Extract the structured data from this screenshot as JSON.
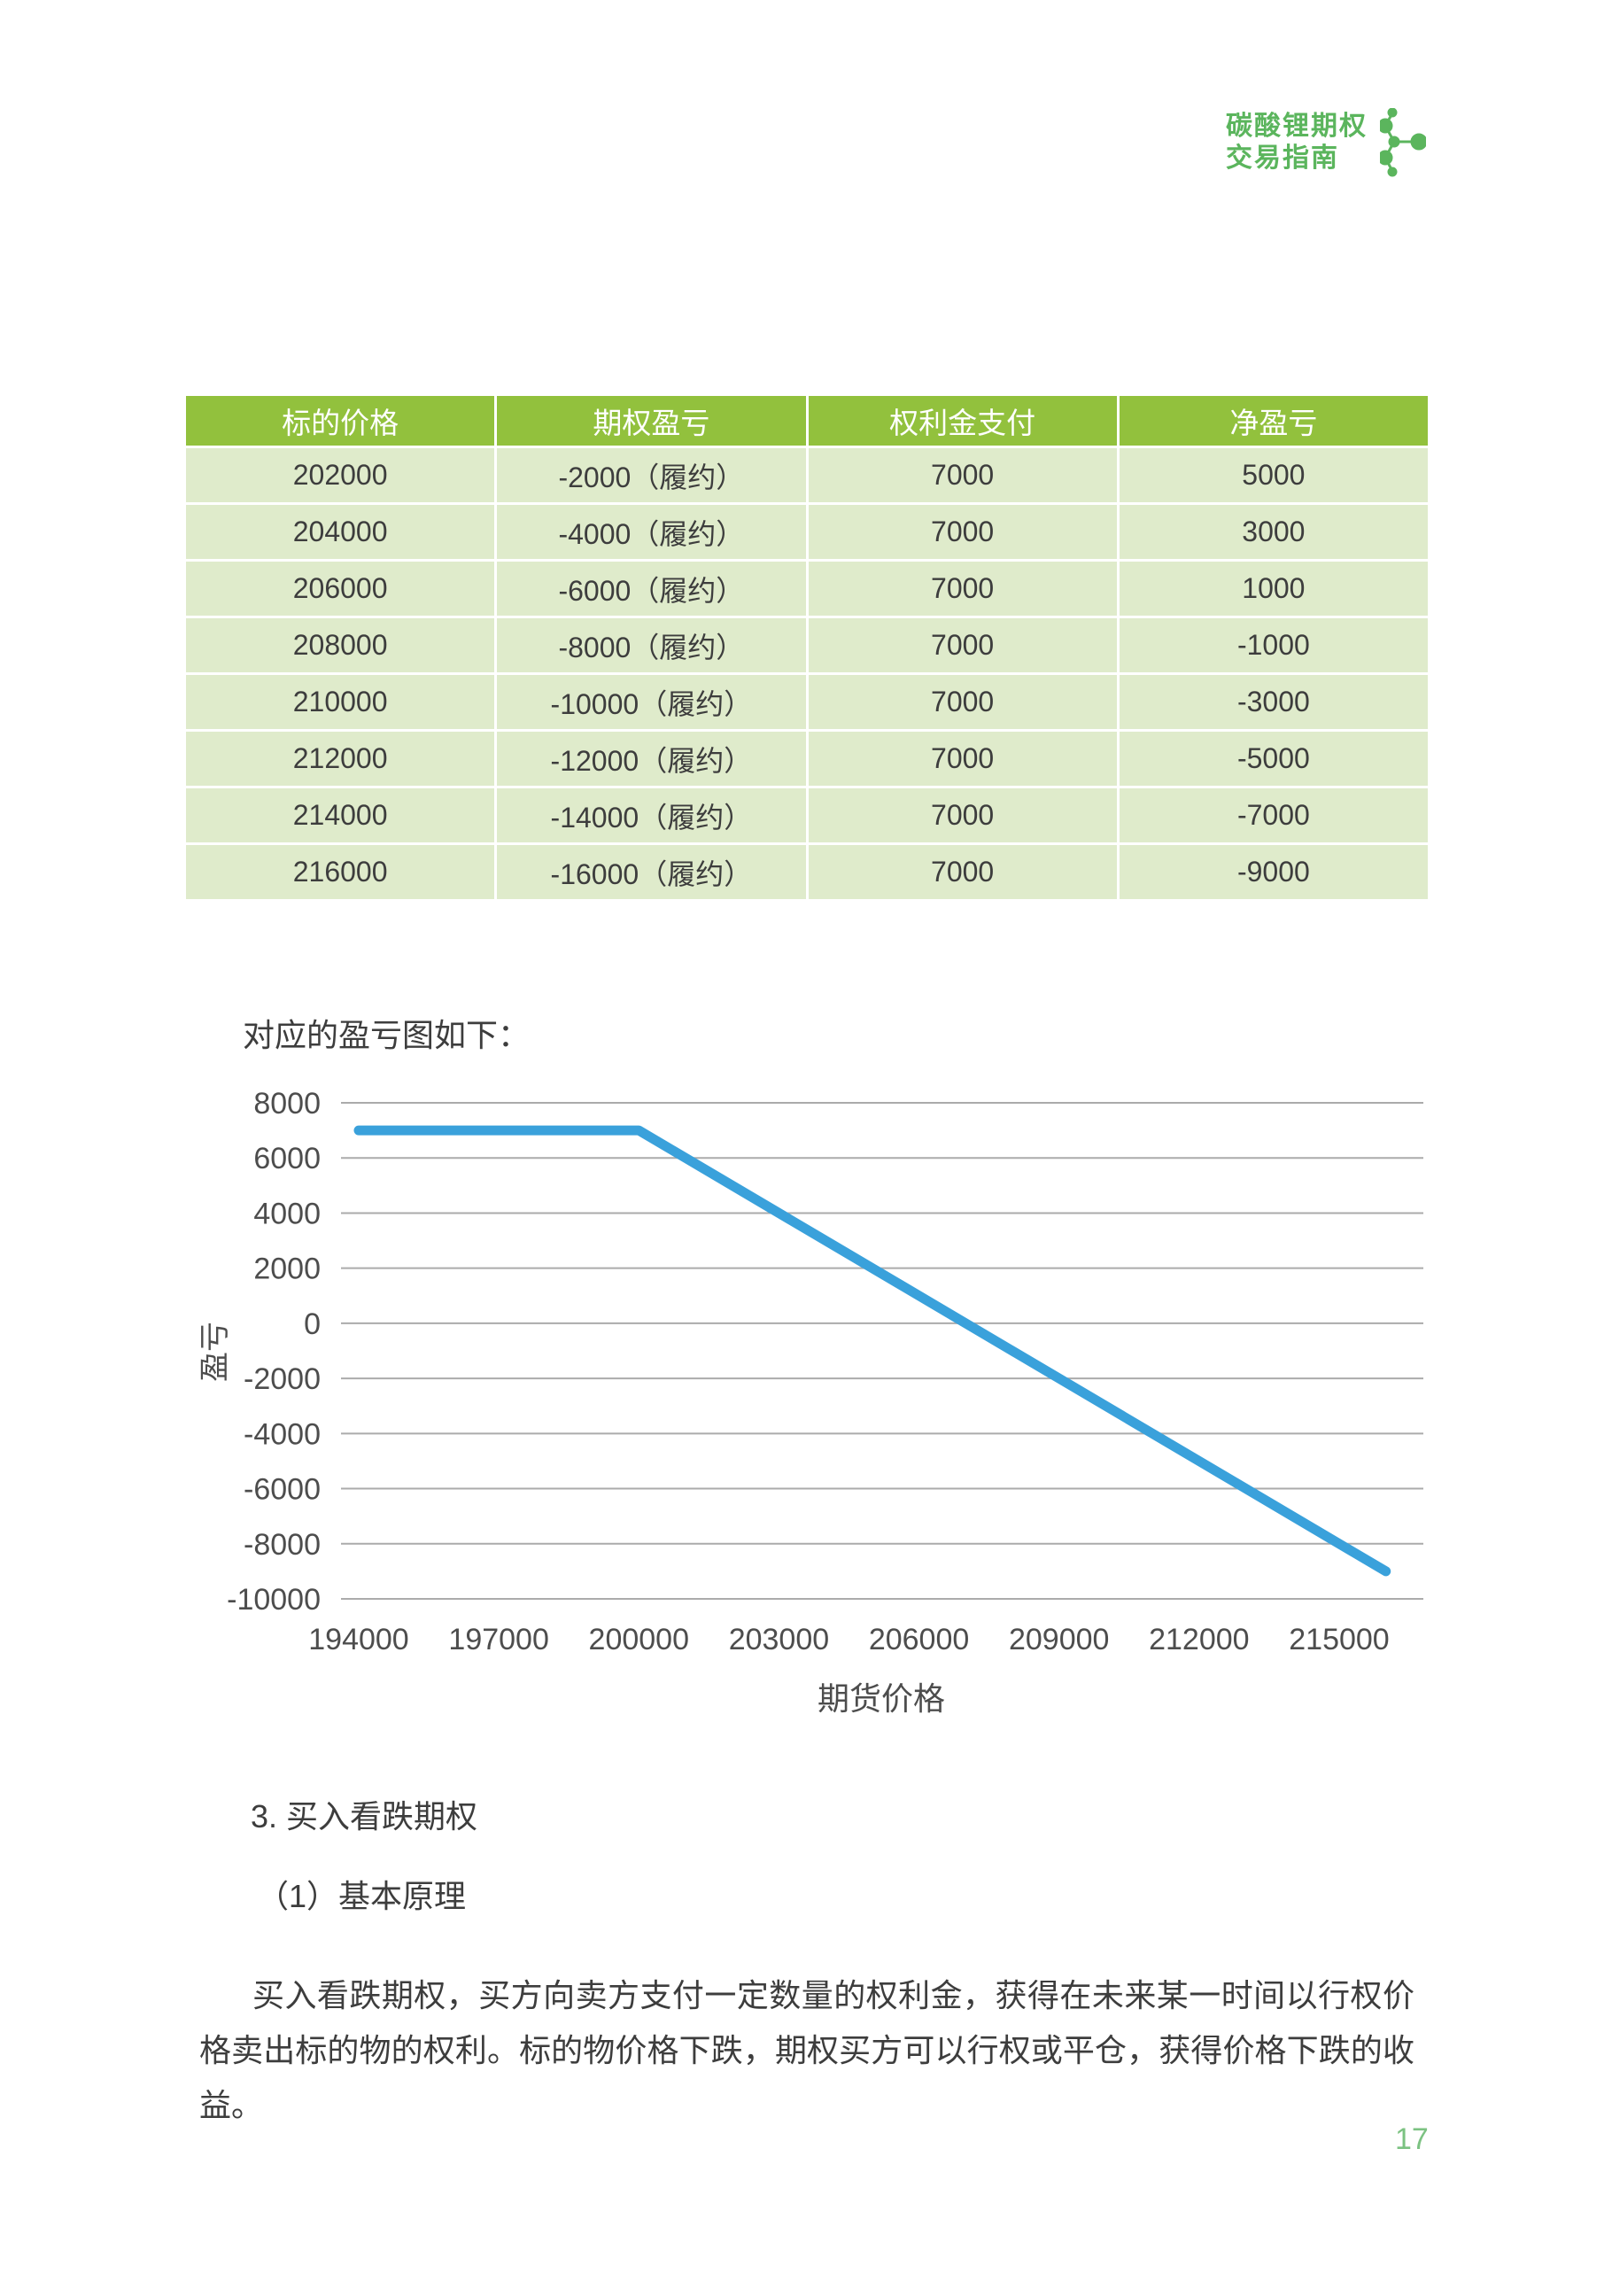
{
  "colors": {
    "logo_green": "#5BB55D",
    "table_header_bg": "#92C13D",
    "table_row_bg": "#DFEBCB",
    "line_blue": "#3AA1DB",
    "grid_gray": "#ABABAB",
    "axis_text": "#4d4d4d",
    "page_number_green": "#7CC282"
  },
  "logo": {
    "title_line1": "碳酸锂期权",
    "title_line2": "交易指南",
    "icon": "molecule-icon"
  },
  "table": {
    "headers": [
      "标的价格",
      "期权盈亏",
      "权利金支付",
      "净盈亏"
    ],
    "rows": [
      [
        "202000",
        "-2000（履约）",
        "7000",
        "5000"
      ],
      [
        "204000",
        "-4000（履约）",
        "7000",
        "3000"
      ],
      [
        "206000",
        "-6000（履约）",
        "7000",
        "1000"
      ],
      [
        "208000",
        "-8000（履约）",
        "7000",
        "-1000"
      ],
      [
        "210000",
        "-10000（履约）",
        "7000",
        "-3000"
      ],
      [
        "212000",
        "-12000（履约）",
        "7000",
        "-5000"
      ],
      [
        "214000",
        "-14000（履约）",
        "7000",
        "-7000"
      ],
      [
        "216000",
        "-16000（履约）",
        "7000",
        "-9000"
      ]
    ]
  },
  "chart_intro": "对应的盈亏图如下：",
  "chart_data": {
    "type": "line",
    "title": "",
    "xlabel": "期货价格",
    "ylabel": "盈亏",
    "x_ticks": [
      194000,
      197000,
      200000,
      203000,
      206000,
      209000,
      212000,
      215000
    ],
    "y_ticks": [
      8000,
      6000,
      4000,
      2000,
      0,
      -2000,
      -4000,
      -6000,
      -8000,
      -10000
    ],
    "xlim": [
      193600,
      216800
    ],
    "ylim": [
      -10000,
      8000
    ],
    "grid": true,
    "legend": "none",
    "series": [
      {
        "name": "盈亏",
        "color": "#3AA1DB",
        "points": [
          [
            194000,
            7000
          ],
          [
            200000,
            7000
          ],
          [
            216000,
            -9000
          ]
        ]
      }
    ]
  },
  "sections": {
    "heading": "3. 买入看跌期权",
    "subheading": "（1）基本原理",
    "paragraph": "买入看跌期权，买方向卖方支付一定数量的权利金，获得在未来某一时间以行权价格卖出标的物的权利。标的物价格下跌，期权买方可以行权或平仓，获得价格下跌的收益。"
  },
  "page": {
    "number": "17"
  }
}
